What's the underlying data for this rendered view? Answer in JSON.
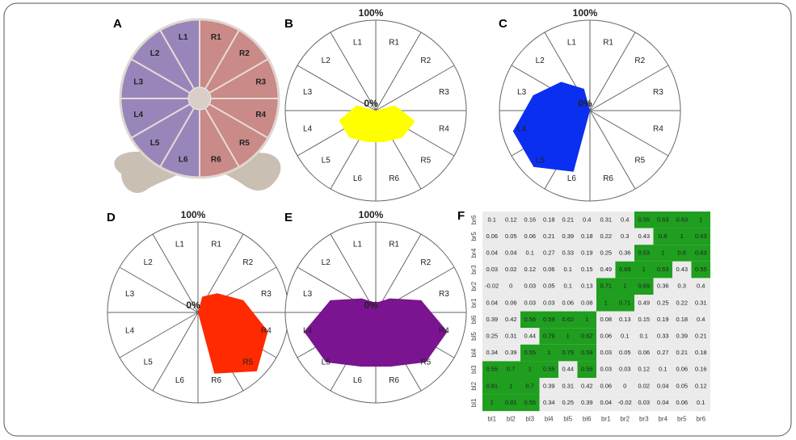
{
  "illustration": {
    "panel_label": "A",
    "labels": [
      "R1",
      "R2",
      "R3",
      "R4",
      "R5",
      "R6",
      "L6",
      "L5",
      "L4",
      "L3",
      "L2",
      "L1"
    ]
  },
  "chart_data": [
    {
      "type": "radar",
      "panel_label": "B",
      "categories": [
        "R1",
        "R2",
        "R3",
        "R4",
        "R5",
        "R6",
        "L6",
        "L5",
        "L4",
        "L3",
        "L2",
        "L1"
      ],
      "values": [
        0,
        0,
        22,
        45,
        42,
        36,
        36,
        42,
        42,
        22,
        0,
        0
      ],
      "color": "#ffff00",
      "rlim": [
        0,
        100
      ],
      "rticks": [
        {
          "value": 0,
          "label": "0%"
        },
        {
          "value": 100,
          "label": "100%"
        }
      ]
    },
    {
      "type": "radar",
      "panel_label": "C",
      "categories": [
        "R1",
        "R2",
        "R3",
        "R4",
        "R5",
        "R6",
        "L6",
        "L5",
        "L4",
        "L3",
        "L2",
        "L1"
      ],
      "values": [
        0,
        0,
        0,
        0,
        0,
        0,
        70,
        88,
        88,
        65,
        45,
        25
      ],
      "color": "#0a2ff0",
      "rlim": [
        0,
        100
      ],
      "rticks": [
        {
          "value": 0,
          "label": "0%"
        },
        {
          "value": 100,
          "label": "100%"
        }
      ]
    },
    {
      "type": "radar",
      "panel_label": "D",
      "categories": [
        "R1",
        "R2",
        "R3",
        "R4",
        "R5",
        "R6",
        "L6",
        "L5",
        "L4",
        "L3",
        "L2",
        "L1"
      ],
      "values": [
        18,
        30,
        52,
        80,
        92,
        70,
        0,
        0,
        0,
        0,
        0,
        0
      ],
      "color": "#ff2a00",
      "rlim": [
        0,
        100
      ],
      "rticks": [
        {
          "value": 0,
          "label": "0%"
        },
        {
          "value": 100,
          "label": "100%"
        }
      ]
    },
    {
      "type": "radar",
      "panel_label": "E",
      "categories": [
        "R1",
        "R2",
        "R3",
        "R4",
        "R5",
        "R6",
        "L6",
        "L5",
        "L4",
        "L3",
        "L2",
        "L1"
      ],
      "values": [
        12,
        22,
        52,
        82,
        78,
        62,
        62,
        78,
        82,
        52,
        22,
        12
      ],
      "color": "#7a1490",
      "rlim": [
        0,
        100
      ],
      "rticks": [
        {
          "value": 0,
          "label": "0%"
        },
        {
          "value": 100,
          "label": "100%"
        }
      ]
    },
    {
      "type": "heatmap",
      "panel_label": "F",
      "rows": [
        "br6",
        "br5",
        "br4",
        "br3",
        "br2",
        "br1",
        "bl6",
        "bl5",
        "bl4",
        "bl3",
        "bl2",
        "bl1"
      ],
      "columns": [
        "bl1",
        "bl2",
        "bl3",
        "bl4",
        "bl5",
        "bl6",
        "br1",
        "br2",
        "br3",
        "br4",
        "br5",
        "br6"
      ],
      "values": [
        [
          0.1,
          0.12,
          0.16,
          0.18,
          0.21,
          0.4,
          0.31,
          0.4,
          0.55,
          0.63,
          0.63,
          1
        ],
        [
          0.06,
          0.05,
          0.06,
          0.21,
          0.39,
          0.18,
          0.22,
          0.3,
          0.43,
          0.8,
          1,
          0.63
        ],
        [
          0.04,
          0.04,
          0.1,
          0.27,
          0.33,
          0.19,
          0.25,
          0.36,
          0.53,
          1,
          0.8,
          0.63
        ],
        [
          0.03,
          0.02,
          0.12,
          0.06,
          0.1,
          0.15,
          0.49,
          0.69,
          1,
          0.53,
          0.43,
          0.55
        ],
        [
          -0.02,
          0,
          0.03,
          0.05,
          0.1,
          0.13,
          0.71,
          1,
          0.69,
          0.36,
          0.3,
          0.4
        ],
        [
          0.04,
          0.06,
          0.03,
          0.03,
          0.06,
          0.08,
          1,
          0.71,
          0.49,
          0.25,
          0.22,
          0.31
        ],
        [
          0.39,
          0.42,
          0.56,
          0.59,
          0.62,
          1,
          0.08,
          0.13,
          0.15,
          0.19,
          0.18,
          0.4
        ],
        [
          0.25,
          0.31,
          0.44,
          0.79,
          1,
          0.62,
          0.06,
          0.1,
          0.1,
          0.33,
          0.39,
          0.21
        ],
        [
          0.34,
          0.39,
          0.55,
          1,
          0.79,
          0.59,
          0.03,
          0.05,
          0.06,
          0.27,
          0.21,
          0.18
        ],
        [
          0.55,
          0.7,
          1,
          0.55,
          0.44,
          0.56,
          0.03,
          0.03,
          0.12,
          0.1,
          0.06,
          0.16
        ],
        [
          0.81,
          1,
          0.7,
          0.39,
          0.31,
          0.42,
          0.06,
          0,
          0.02,
          0.04,
          0.05,
          0.12
        ],
        [
          1,
          0.81,
          0.55,
          0.34,
          0.25,
          0.39,
          0.04,
          -0.02,
          0.03,
          0.04,
          0.06,
          0.1
        ]
      ],
      "highlight_min": 0.5,
      "highlight_color": "#1f9e1f",
      "base_color": "#ebebeb"
    }
  ]
}
